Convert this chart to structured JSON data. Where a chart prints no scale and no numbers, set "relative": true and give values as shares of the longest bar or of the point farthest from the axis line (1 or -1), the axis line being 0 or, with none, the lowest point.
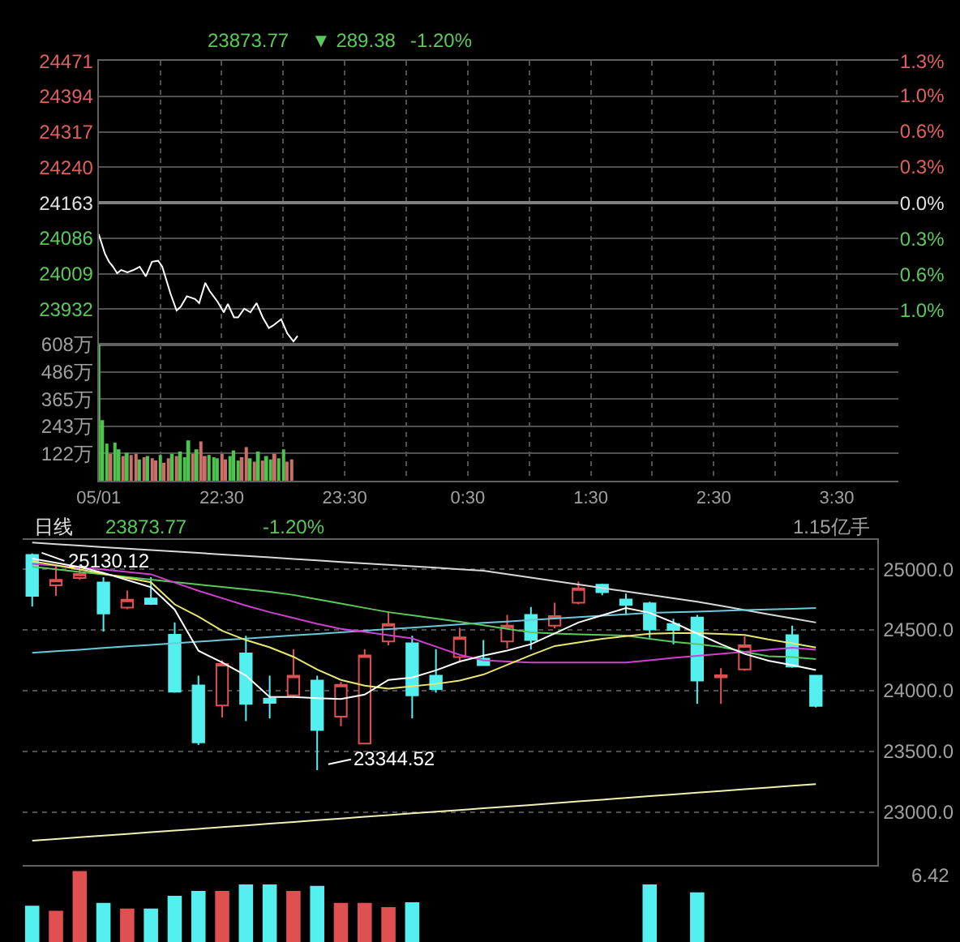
{
  "chart_data": [
    {
      "type": "line",
      "annotations": [
        "23873.77",
        "▼ 289.38",
        "-1.20%"
      ],
      "x": [
        "--05-01T21:30",
        "--05-01T21:33",
        "--05-01T21:35",
        "--05-01T21:37",
        "--05-01T21:39",
        "--05-01T21:41",
        "--05-01T21:44",
        "--05-01T21:47",
        "--05-01T21:50",
        "--05-01T21:53",
        "--05-01T21:56",
        "--05-01T21:59",
        "--05-01T22:01",
        "--05-01T22:05",
        "--05-01T22:08",
        "--05-01T22:10",
        "--05-01T22:13",
        "--05-01T22:17",
        "--05-01T22:19",
        "--05-01T22:22",
        "--05-01T22:24",
        "--05-01T22:28",
        "--05-01T22:31",
        "--05-01T22:33",
        "--05-01T22:36",
        "--05-01T22:38",
        "--05-01T22:41",
        "--05-01T22:44",
        "--05-01T22:47",
        "--05-01T22:50",
        "--05-01T22:53",
        "--05-01T22:55",
        "--05-01T22:59",
        "--05-01T23:02",
        "--05-01T23:05",
        "--05-01T23:07"
      ],
      "series": [
        {
          "color": "#ffffff",
          "values": [
            24095,
            24053,
            24035,
            24024,
            24010,
            24017,
            24012,
            24017,
            24024,
            24003,
            24035,
            24037,
            24024,
            23966,
            23929,
            23937,
            23960,
            23954,
            23945,
            23989,
            23972,
            23948,
            23925,
            23943,
            23914,
            23914,
            23933,
            23925,
            23945,
            23914,
            23891,
            23896,
            23910,
            23879,
            23862,
            23873.77
          ]
        }
      ],
      "xlim": [
        "--05-01T21:30",
        "--05-02T04:00"
      ],
      "xticks": [
        {
          "value": "--05-01T21:30",
          "label": "05/01"
        },
        {
          "value": "--05-01T22:00",
          "label": null
        },
        {
          "value": "--05-01T22:30",
          "label": "22:30"
        },
        {
          "value": "--05-01T23:00",
          "label": null
        },
        {
          "value": "--05-01T23:30",
          "label": "23:30"
        },
        {
          "value": "--05-02T00:00",
          "label": null
        },
        {
          "value": "--05-02T00:30",
          "label": "0:30"
        },
        {
          "value": "--05-02T01:00",
          "label": null
        },
        {
          "value": "--05-02T01:30",
          "label": "1:30"
        },
        {
          "value": "--05-02T02:00",
          "label": null
        },
        {
          "value": "--05-02T02:30",
          "label": "2:30"
        },
        {
          "value": "--05-02T03:00",
          "label": null
        },
        {
          "value": "--05-02T03:30",
          "label": "3:30"
        }
      ],
      "ylim": [
        23855,
        24471
      ],
      "yticks": [
        24471,
        24394,
        24317,
        24240,
        24163,
        24086,
        24009,
        23932
      ],
      "y2lim": [
        -1.27,
        1.27
      ],
      "y2ticks": [
        {
          "value": 1.27,
          "label": "1.3%"
        },
        {
          "value": 0.96,
          "label": "1.0%"
        },
        {
          "value": 0.64,
          "label": "0.6%"
        },
        {
          "value": 0.32,
          "label": "0.3%"
        },
        {
          "value": 0,
          "label": "0.0%"
        },
        {
          "value": -0.32,
          "label": "0.3%"
        },
        {
          "value": -0.64,
          "label": "0.6%"
        },
        {
          "value": -0.96,
          "label": "1.0%"
        }
      ],
      "ref_lines": [
        {
          "axis": "y",
          "value": 24163,
          "color": "#808080"
        }
      ],
      "grid": true,
      "tick_labels": "y"
    },
    {
      "type": "bar",
      "x": [
        "--05-01T21:30",
        "--05-01T21:32",
        "--05-01T21:34",
        "--05-01T21:36",
        "--05-01T21:38",
        "--05-01T21:40",
        "--05-01T21:42",
        "--05-01T21:44",
        "--05-01T21:46",
        "--05-01T21:48",
        "--05-01T21:50",
        "--05-01T21:52",
        "--05-01T21:54",
        "--05-01T21:56",
        "--05-01T21:58",
        "--05-01T22:00",
        "--05-01T22:02",
        "--05-01T22:04",
        "--05-01T22:06",
        "--05-01T22:08",
        "--05-01T22:10",
        "--05-01T22:12",
        "--05-01T22:14",
        "--05-01T22:16",
        "--05-01T22:18",
        "--05-01T22:20",
        "--05-01T22:22",
        "--05-01T22:24",
        "--05-01T22:26",
        "--05-01T22:28",
        "--05-01T22:30",
        "--05-01T22:32",
        "--05-01T22:34",
        "--05-01T22:36",
        "--05-01T22:38",
        "--05-01T22:40",
        "--05-01T22:42",
        "--05-01T22:44",
        "--05-01T22:46",
        "--05-01T22:48",
        "--05-01T22:50",
        "--05-01T22:52",
        "--05-01T22:54",
        "--05-01T22:56",
        "--05-01T22:58",
        "--05-01T23:00",
        "--05-01T23:02",
        "--05-01T23:04"
      ],
      "values": [
        608,
        270,
        165,
        120,
        170,
        140,
        110,
        125,
        115,
        120,
        95,
        105,
        110,
        100,
        90,
        115,
        80,
        100,
        120,
        110,
        130,
        105,
        180,
        120,
        140,
        175,
        110,
        115,
        105,
        100,
        120,
        95,
        110,
        135,
        90,
        105,
        150,
        100,
        85,
        130,
        90,
        110,
        95,
        120,
        100,
        140,
        85,
        95
      ],
      "colors": [
        "#4fc34f",
        "#4fc34f",
        "#4fc34f",
        "#cc6e6a",
        "#4fc34f",
        "#4fc34f",
        "#cc6e6a",
        "#4fc34f",
        "#cc6e6a",
        "#cc6e6a",
        "#4fc34f",
        "#cc6e6a",
        "#4fc34f",
        "#cc6e6a",
        "#cc6e6a",
        "#4fc34f",
        "#cc6e6a",
        "#cc6e6a",
        "#4fc34f",
        "#cc6e6a",
        "#4fc34f",
        "#4fc34f",
        "#4fc34f",
        "#cc6e6a",
        "#4fc34f",
        "#cc6e6a",
        "#cc6e6a",
        "#4fc34f",
        "#4fc34f",
        "#4fc34f",
        "#cc6e6a",
        "#cc6e6a",
        "#4fc34f",
        "#4fc34f",
        "#4fc34f",
        "#cc6e6a",
        "#cc6e6a",
        "#4fc34f",
        "#cc6e6a",
        "#4fc34f",
        "#cc6e6a",
        "#4fc34f",
        "#4fc34f",
        "#cc6e6a",
        "#4fc34f",
        "#4fc34f",
        "#cc6e6a",
        "#cc6e6a"
      ],
      "xlim": [
        "--05-01T21:30",
        "--05-02T04:00"
      ],
      "xticks": [
        {
          "value": "--05-01T21:30",
          "label": "05/01"
        },
        {
          "value": "--05-01T22:00",
          "label": null
        },
        {
          "value": "--05-01T22:30",
          "label": "22:30"
        },
        {
          "value": "--05-01T23:00",
          "label": null
        },
        {
          "value": "--05-01T23:30",
          "label": "23:30"
        },
        {
          "value": "--05-02T00:00",
          "label": null
        },
        {
          "value": "--05-02T00:30",
          "label": "0:30"
        },
        {
          "value": "--05-02T01:00",
          "label": null
        },
        {
          "value": "--05-02T01:30",
          "label": "1:30"
        },
        {
          "value": "--05-02T02:00",
          "label": null
        },
        {
          "value": "--05-02T02:30",
          "label": "2:30"
        },
        {
          "value": "--05-02T03:00",
          "label": null
        },
        {
          "value": "--05-02T03:30",
          "label": "3:30"
        }
      ],
      "ylim": [
        0,
        608
      ],
      "yticks": [
        {
          "value": 608,
          "label": "608万"
        },
        {
          "value": 486,
          "label": "486万"
        },
        {
          "value": 365,
          "label": "365万"
        },
        {
          "value": 243,
          "label": "243万"
        },
        {
          "value": 122,
          "label": "122万"
        }
      ],
      "grid": true
    },
    {
      "type": "candlestick",
      "annotations": [
        "日线",
        "23873.77",
        "-1.20%",
        "1.15亿手",
        "25130.12",
        "23344.52"
      ],
      "categories": [
        null,
        null,
        null,
        null,
        null,
        null,
        null,
        null,
        null,
        null,
        null,
        null,
        null,
        null,
        null,
        null,
        null,
        null,
        null,
        null,
        null,
        null,
        null,
        null,
        null,
        null,
        null,
        null,
        null,
        null,
        null,
        null,
        null,
        null
      ],
      "ohlc": [
        [
          25118,
          25130.12,
          24692,
          24780
        ],
        [
          24868,
          25022,
          24780,
          24912
        ],
        [
          24927,
          25035,
          24912,
          24962
        ],
        [
          24890,
          24934,
          24487,
          24636
        ],
        [
          24683,
          24824,
          24670,
          24749
        ],
        [
          24758,
          24934,
          24705,
          24714
        ],
        [
          24460,
          24561,
          23982,
          23990
        ],
        [
          24043,
          24122,
          23551,
          23573
        ],
        [
          23877,
          24250,
          23779,
          24219
        ],
        [
          24307,
          24452,
          23749,
          23890
        ],
        [
          23934,
          24122,
          23771,
          23899
        ],
        [
          23960,
          24342,
          23938,
          24122
        ],
        [
          24083,
          24122,
          23344.52,
          23675
        ],
        [
          23785,
          24070,
          23706,
          24048
        ],
        [
          23564,
          24342,
          23564,
          24289
        ],
        [
          24404,
          24653,
          24373,
          24548
        ],
        [
          24390,
          24452,
          23771,
          23960
        ],
        [
          24122,
          24342,
          23982,
          24013
        ],
        [
          24276,
          24517,
          24232,
          24438
        ],
        [
          24263,
          24417,
          24202,
          24210
        ],
        [
          24404,
          24623,
          24346,
          24535
        ],
        [
          24623,
          24689,
          24338,
          24417
        ],
        [
          24535,
          24724,
          24513,
          24614
        ],
        [
          24724,
          24899,
          24710,
          24842
        ],
        [
          24873,
          24880,
          24785,
          24811
        ],
        [
          24750,
          24798,
          24623,
          24706
        ],
        [
          24719,
          24732,
          24434,
          24504
        ],
        [
          24548,
          24592,
          24381,
          24500
        ],
        [
          24601,
          24623,
          23890,
          24083
        ],
        [
          24109,
          24184,
          23890,
          24126
        ],
        [
          24175,
          24447,
          24162,
          24373
        ],
        null,
        [
          24456,
          24535,
          24188,
          24197
        ],
        [
          24122,
          24130,
          23860,
          23873.77
        ]
      ],
      "series": [
        {
          "type": "line",
          "color": "#d8d8d8",
          "values": [
            25219,
            25207,
            25195,
            25182,
            25170,
            25158,
            25146,
            25134,
            25121,
            25109,
            25097,
            25085,
            25073,
            25060,
            25048,
            25036,
            25024,
            25012,
            25000,
            24987,
            24959,
            24930,
            24902,
            24874,
            24845,
            24817,
            24789,
            24760,
            24732,
            24698,
            24664,
            24629,
            24595,
            24561
          ]
        },
        {
          "type": "line",
          "color": "#f0f0b0",
          "values": [
            22763,
            22777,
            22791,
            22805,
            22819,
            22833,
            22847,
            22861,
            22875,
            22889,
            22903,
            22917,
            22932,
            22946,
            22960,
            22974,
            22988,
            23002,
            23016,
            23030,
            23044,
            23058,
            23073,
            23087,
            23101,
            23116,
            23130,
            23144,
            23159,
            23173,
            23187,
            23201,
            23216,
            23230
          ]
        },
        {
          "type": "line",
          "color": "#6cc8d8",
          "values": [
            24311,
            24324,
            24337,
            24351,
            24364,
            24377,
            24390,
            24403,
            24416,
            24429,
            24442,
            24455,
            24467,
            24480,
            24493,
            24506,
            24519,
            24532,
            24545,
            24558,
            24569,
            24581,
            24593,
            24605,
            24617,
            24629,
            24640,
            24646,
            24651,
            24657,
            24663,
            24669,
            24674,
            24680
          ]
        },
        {
          "type": "line",
          "color": "#5cc85c",
          "values": [
            25021,
            24999,
            24978,
            24957,
            24935,
            24914,
            24894,
            24874,
            24854,
            24834,
            24814,
            24788,
            24752,
            24717,
            24681,
            24646,
            24620,
            24593,
            24566,
            24538,
            24509,
            24480,
            24470,
            24464,
            24459,
            24453,
            24427,
            24402,
            24383,
            24359,
            24318,
            24283,
            24276,
            24260
          ]
        },
        {
          "type": "line",
          "color": "#d040d0",
          "values": [
            25044,
            25029,
            25014,
            24998,
            24978,
            24958,
            24890,
            24822,
            24761,
            24700,
            24646,
            24598,
            24550,
            24509,
            24483,
            24456,
            24430,
            24362,
            24295,
            24250,
            24240,
            24232,
            24232,
            24232,
            24232,
            24232,
            24249,
            24270,
            24287,
            24303,
            24319,
            24336,
            24353,
            24337
          ]
        },
        {
          "type": "line",
          "color": "#e8e870",
          "values": [
            25066,
            25032,
            24997,
            24962,
            24928,
            24893,
            24710,
            24610,
            24492,
            24416,
            24356,
            24278,
            24173,
            24088,
            24041,
            24015,
            24035,
            24055,
            24083,
            24132,
            24212,
            24292,
            24367,
            24397,
            24427,
            24448,
            24468,
            24474,
            24474,
            24467,
            24458,
            24421,
            24390,
            24354
          ]
        },
        {
          "type": "line",
          "color": "#ffffff",
          "values": [
            25088,
            25053,
            25018,
            24970,
            24911,
            24852,
            24667,
            24328,
            24232,
            24124,
            23947,
            23947,
            23938,
            23931,
            23967,
            24088,
            24107,
            24167,
            24239,
            24288,
            24330,
            24382,
            24471,
            24561,
            24620,
            24680,
            24641,
            24561,
            24470,
            24382,
            24302,
            24246,
            24209,
            24170
          ]
        }
      ],
      "ylim": [
        22562,
        25241
      ],
      "yticks": [
        {
          "value": 25000,
          "label": "25000.0"
        },
        {
          "value": 24500,
          "label": "24500.0"
        },
        {
          "value": 24000,
          "label": "24000.0"
        },
        {
          "value": 23500,
          "label": "23500.0"
        },
        {
          "value": 23000,
          "label": "23000.0"
        }
      ],
      "grid": "y",
      "tick_labels": "y"
    },
    {
      "type": "bar",
      "relative": true,
      "annotations": [
        "6.42"
      ],
      "categories": [
        null,
        null,
        null,
        null,
        null,
        null,
        null,
        null,
        null,
        null,
        null,
        null,
        null,
        null,
        null,
        null,
        null,
        null,
        null,
        null,
        null,
        null,
        null,
        null,
        null,
        null,
        null,
        null,
        null,
        null,
        null,
        null,
        null,
        null
      ],
      "values": [
        0.51,
        0.44,
        1,
        0.55,
        0.47,
        0.47,
        0.65,
        0.72,
        0.72,
        0.81,
        0.81,
        0.72,
        0.79,
        0.55,
        0.55,
        0.49,
        0.56,
        null,
        null,
        null,
        null,
        null,
        null,
        null,
        null,
        null,
        0.81,
        null,
        0.7,
        null,
        null,
        null,
        null,
        null
      ],
      "colors": [
        "#54f0f0",
        "#e05050",
        "#e05050",
        "#54f0f0",
        "#e05050",
        "#54f0f0",
        "#54f0f0",
        "#54f0f0",
        "#e05050",
        "#54f0f0",
        "#54f0f0",
        "#e05050",
        "#54f0f0",
        "#e05050",
        "#e05050",
        "#e05050",
        "#54f0f0",
        null,
        null,
        null,
        null,
        null,
        null,
        null,
        null,
        null,
        "#54f0f0",
        null,
        "#54f0f0",
        null,
        null,
        null,
        null,
        null
      ],
      "tick_labels": false
    }
  ]
}
